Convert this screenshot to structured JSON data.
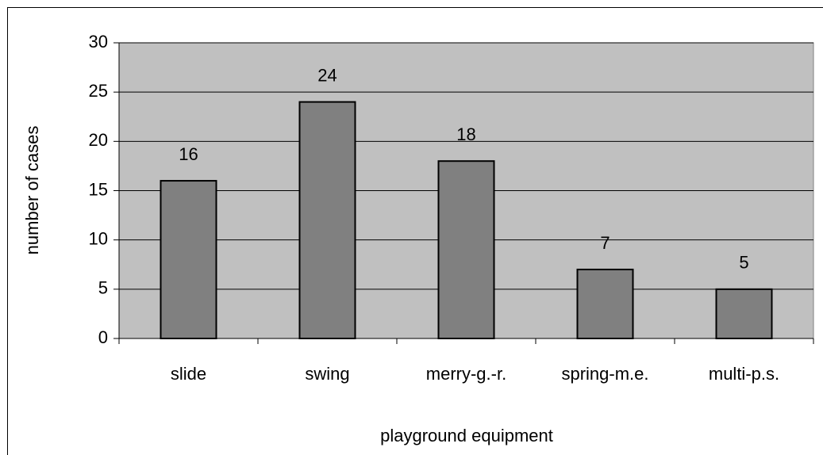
{
  "chart_data": {
    "type": "bar",
    "xlabel": "playground equipment",
    "ylabel": "number of cases",
    "categories": [
      "slide",
      "swing",
      "merry-g.-r.",
      "spring-m.e.",
      "multi-p.s."
    ],
    "values": [
      16,
      24,
      18,
      7,
      5
    ],
    "color": "#808080",
    "background": "#c0c0c0",
    "ylim": [
      0,
      30
    ],
    "yticks": [
      0,
      5,
      10,
      15,
      20,
      25,
      30
    ],
    "grid": true
  }
}
